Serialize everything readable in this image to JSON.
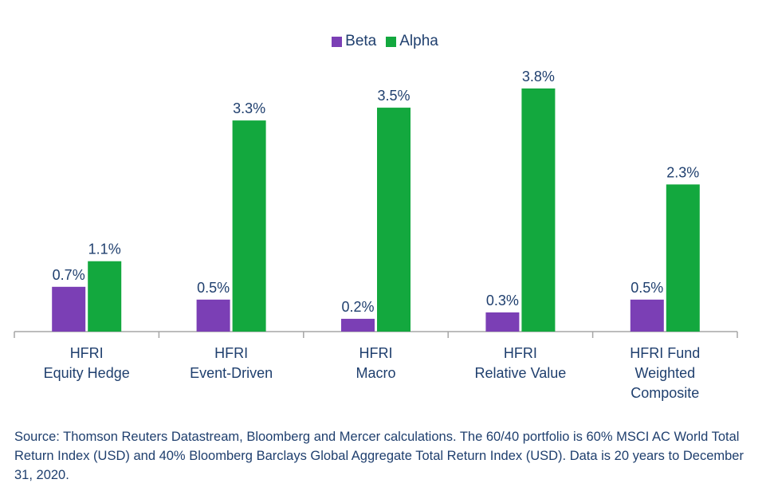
{
  "chart_data": {
    "type": "bar",
    "categories": [
      [
        "HFRI",
        "Equity Hedge"
      ],
      [
        "HFRI",
        "Event-Driven"
      ],
      [
        "HFRI",
        "Macro"
      ],
      [
        "HFRI",
        "Relative Value"
      ],
      [
        "HFRI Fund",
        "Weighted",
        "Composite"
      ]
    ],
    "series": [
      {
        "name": "Beta",
        "color": "#7b3fb5",
        "values": [
          0.7,
          0.5,
          0.2,
          0.3,
          0.5
        ],
        "labels": [
          "0.7%",
          "0.5%",
          "0.2%",
          "0.3%",
          "0.5%"
        ]
      },
      {
        "name": "Alpha",
        "color": "#13a83e",
        "values": [
          1.1,
          3.3,
          3.5,
          3.8,
          2.3
        ],
        "labels": [
          "1.1%",
          "3.3%",
          "3.5%",
          "3.8%",
          "2.3%"
        ]
      }
    ],
    "ylim": [
      0,
      3.8
    ],
    "legend_position": "top-center",
    "grid": false
  },
  "legend": {
    "beta": "Beta",
    "alpha": "Alpha"
  },
  "colors": {
    "text": "#1f3f6e",
    "axis": "#a6a6a6"
  },
  "source_note": "Source: Thomson Reuters Datastream, Bloomberg and Mercer calculations. The 60/40 portfolio is 60% MSCI AC World Total Return Index (USD) and 40% Bloomberg Barclays Global Aggregate Total Return Index (USD). Data is 20 years to December 31, 2020."
}
